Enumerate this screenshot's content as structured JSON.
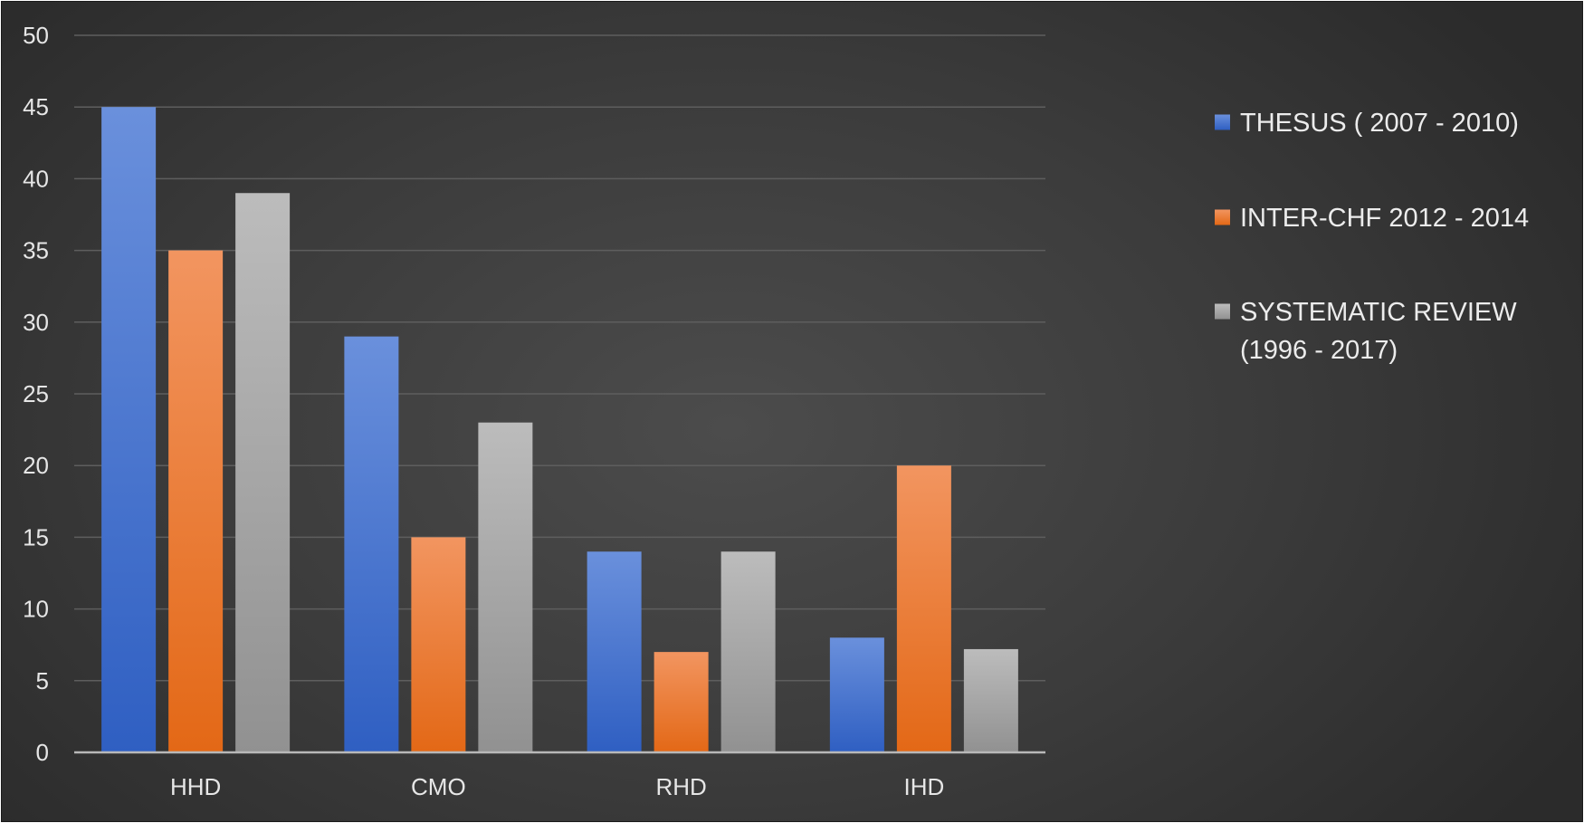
{
  "chart_data": {
    "type": "bar",
    "categories": [
      "HHD",
      "CMO",
      "RHD",
      "IHD"
    ],
    "series": [
      {
        "name": "THESUS ( 2007 - 2010)",
        "values": [
          45,
          29,
          14,
          8
        ],
        "color_top": "#6a90dc",
        "color_bottom": "#2f5fc2"
      },
      {
        "name": "INTER-CHF 2012 - 2014",
        "values": [
          35,
          15,
          7,
          20
        ],
        "color_top": "#f29560",
        "color_bottom": "#e36816"
      },
      {
        "name": "SYSTEMATIC REVIEW (1996 - 2017)",
        "name_lines": [
          "SYSTEMATIC REVIEW",
          "(1996 - 2017)"
        ],
        "values": [
          39,
          23,
          14,
          7.2
        ],
        "color_top": "#bcbcbc",
        "color_bottom": "#919191"
      }
    ],
    "yticks": [
      "0",
      "5",
      "10",
      "15",
      "20",
      "25",
      "30",
      "35",
      "40",
      "45",
      "50"
    ],
    "ylim": [
      0,
      50
    ],
    "grid": true,
    "legend_position": "right"
  }
}
